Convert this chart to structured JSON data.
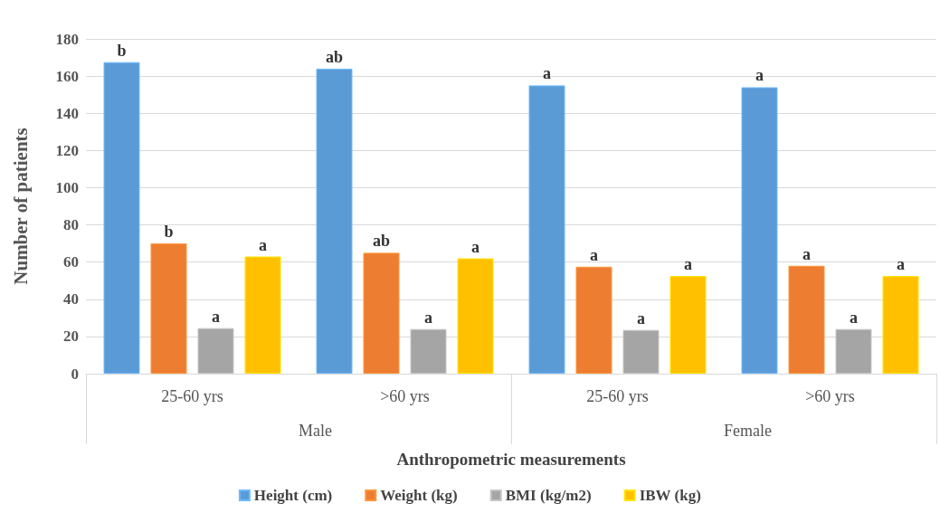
{
  "chart_data": {
    "type": "bar",
    "xlabel": "Anthropometric measurements",
    "ylabel": "Number of patients",
    "categories": [
      "25-60 yrs",
      ">60 yrs",
      "25-60 yrs",
      ">60 yrs"
    ],
    "annotations": [
      "Male",
      "Female"
    ],
    "series": [
      {
        "name": "Height (cm)",
        "color": "#5b9bd5",
        "values": [
          167.5,
          164,
          155,
          154
        ],
        "value_labels": [
          "b",
          "ab",
          "a",
          "a"
        ]
      },
      {
        "name": "Weight (kg)",
        "color": "#ed7d31",
        "values": [
          70,
          65,
          57.5,
          58
        ],
        "value_labels": [
          "b",
          "ab",
          "a",
          "a"
        ]
      },
      {
        "name": "BMI (kg/m2)",
        "color": "#a5a5a5",
        "values": [
          24.5,
          24,
          23.5,
          24
        ],
        "value_labels": [
          "a",
          "a",
          "a",
          "a"
        ]
      },
      {
        "name": "IBW (kg)",
        "color": "#ffc000",
        "values": [
          63,
          62,
          52.5,
          52.5
        ],
        "value_labels": [
          "a",
          "a",
          "a",
          "a"
        ]
      }
    ],
    "ylim": [
      0,
      180
    ],
    "yticks": [
      0,
      20,
      40,
      60,
      80,
      100,
      120,
      140,
      160,
      180
    ],
    "grid": "y",
    "legend": "bottom"
  }
}
